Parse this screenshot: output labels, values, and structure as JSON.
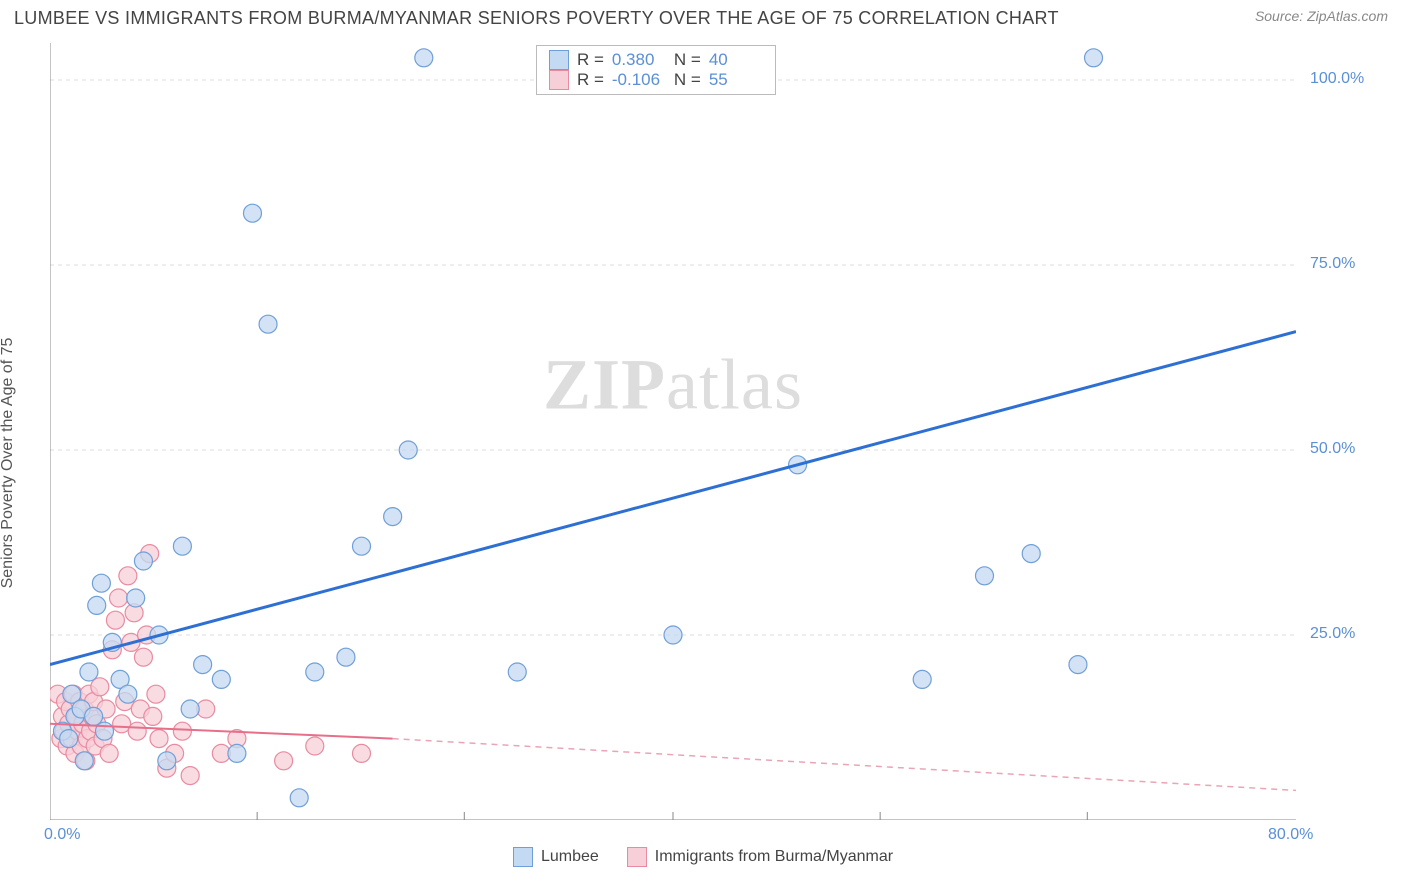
{
  "header": {
    "title": "LUMBEE VS IMMIGRANTS FROM BURMA/MYANMAR SENIORS POVERTY OVER THE AGE OF 75 CORRELATION CHART",
    "source": "Source: ZipAtlas.com"
  },
  "ylabel": "Seniors Poverty Over the Age of 75",
  "watermark": {
    "part1": "ZIP",
    "part2": "atlas"
  },
  "chart": {
    "type": "scatter",
    "xlim": [
      0,
      80
    ],
    "ylim": [
      0,
      105
    ],
    "xticks": [
      {
        "v": 0,
        "label": "0.0%"
      },
      {
        "v": 80,
        "label": "80.0%"
      }
    ],
    "xtick_minor": [
      13.3,
      26.6,
      40,
      53.3,
      66.6
    ],
    "yticks": [
      {
        "v": 25,
        "label": "25.0%"
      },
      {
        "v": 50,
        "label": "50.0%"
      },
      {
        "v": 75,
        "label": "75.0%"
      },
      {
        "v": 100,
        "label": "100.0%"
      }
    ],
    "grid_color": "#dcdcdc",
    "axis_color": "#888888",
    "marker_radius": 9,
    "marker_stroke_width": 1.2,
    "series": [
      {
        "name": "Lumbee",
        "fill": "#c4daf2",
        "stroke": "#6f9fd8",
        "points": [
          [
            0.8,
            12
          ],
          [
            1.2,
            11
          ],
          [
            1.4,
            17
          ],
          [
            1.6,
            14
          ],
          [
            2,
            15
          ],
          [
            2.2,
            8
          ],
          [
            2.5,
            20
          ],
          [
            2.8,
            14
          ],
          [
            3,
            29
          ],
          [
            3.3,
            32
          ],
          [
            3.5,
            12
          ],
          [
            4,
            24
          ],
          [
            4.5,
            19
          ],
          [
            5,
            17
          ],
          [
            5.5,
            30
          ],
          [
            6,
            35
          ],
          [
            7,
            25
          ],
          [
            7.5,
            8
          ],
          [
            8.5,
            37
          ],
          [
            9,
            15
          ],
          [
            9.8,
            21
          ],
          [
            11,
            19
          ],
          [
            12,
            9
          ],
          [
            13,
            82
          ],
          [
            14,
            67
          ],
          [
            16,
            3
          ],
          [
            17,
            20
          ],
          [
            19,
            22
          ],
          [
            20,
            37
          ],
          [
            22,
            41
          ],
          [
            23,
            50
          ],
          [
            24,
            103
          ],
          [
            30,
            20
          ],
          [
            40,
            25
          ],
          [
            48,
            48
          ],
          [
            56,
            19
          ],
          [
            60,
            33
          ],
          [
            63,
            36
          ],
          [
            66,
            21
          ],
          [
            67,
            103
          ]
        ],
        "trend": {
          "x1": 0,
          "y1": 21,
          "x2": 80,
          "y2": 66,
          "color": "#2e6fd4",
          "width": 3
        },
        "R": "0.380",
        "N": "40"
      },
      {
        "name": "Immigrants from Burma/Myanmar",
        "fill": "#f7cfd8",
        "stroke": "#e88ba0",
        "points": [
          [
            0.5,
            17
          ],
          [
            0.7,
            11
          ],
          [
            0.8,
            14
          ],
          [
            0.9,
            12
          ],
          [
            1,
            16
          ],
          [
            1.1,
            10
          ],
          [
            1.2,
            13
          ],
          [
            1.3,
            15
          ],
          [
            1.4,
            11
          ],
          [
            1.5,
            17
          ],
          [
            1.6,
            9
          ],
          [
            1.7,
            14
          ],
          [
            1.8,
            12
          ],
          [
            1.9,
            16
          ],
          [
            2,
            10
          ],
          [
            2.1,
            13
          ],
          [
            2.2,
            15
          ],
          [
            2.3,
            8
          ],
          [
            2.4,
            11
          ],
          [
            2.5,
            17
          ],
          [
            2.6,
            12
          ],
          [
            2.7,
            14
          ],
          [
            2.8,
            16
          ],
          [
            2.9,
            10
          ],
          [
            3,
            13
          ],
          [
            3.2,
            18
          ],
          [
            3.4,
            11
          ],
          [
            3.6,
            15
          ],
          [
            3.8,
            9
          ],
          [
            4,
            23
          ],
          [
            4.2,
            27
          ],
          [
            4.4,
            30
          ],
          [
            4.6,
            13
          ],
          [
            4.8,
            16
          ],
          [
            5,
            33
          ],
          [
            5.2,
            24
          ],
          [
            5.4,
            28
          ],
          [
            5.6,
            12
          ],
          [
            5.8,
            15
          ],
          [
            6,
            22
          ],
          [
            6.2,
            25
          ],
          [
            6.4,
            36
          ],
          [
            6.6,
            14
          ],
          [
            6.8,
            17
          ],
          [
            7,
            11
          ],
          [
            7.5,
            7
          ],
          [
            8,
            9
          ],
          [
            8.5,
            12
          ],
          [
            9,
            6
          ],
          [
            10,
            15
          ],
          [
            11,
            9
          ],
          [
            12,
            11
          ],
          [
            15,
            8
          ],
          [
            17,
            10
          ],
          [
            20,
            9
          ]
        ],
        "trend_solid": {
          "x1": 0,
          "y1": 13,
          "x2": 22,
          "y2": 11,
          "color": "#e76f8a",
          "width": 2
        },
        "trend_dash": {
          "x1": 22,
          "y1": 11,
          "x2": 80,
          "y2": 4,
          "color": "#e9a5b5",
          "width": 1.5,
          "dash": "6,5"
        },
        "R": "-0.106",
        "N": "55"
      }
    ]
  },
  "legend": {
    "items": [
      {
        "label": "Lumbee",
        "fill": "#c4daf2",
        "stroke": "#6f9fd8"
      },
      {
        "label": "Immigrants from Burma/Myanmar",
        "fill": "#f7cfd8",
        "stroke": "#e88ba0"
      }
    ]
  },
  "stats_box": {
    "rows": [
      {
        "fill": "#c4daf2",
        "stroke": "#6f9fd8",
        "R": "0.380",
        "N": "40"
      },
      {
        "fill": "#f7cfd8",
        "stroke": "#e88ba0",
        "R": "-0.106",
        "N": "55"
      }
    ],
    "labels": {
      "R": "R  =",
      "N": "N  ="
    }
  }
}
